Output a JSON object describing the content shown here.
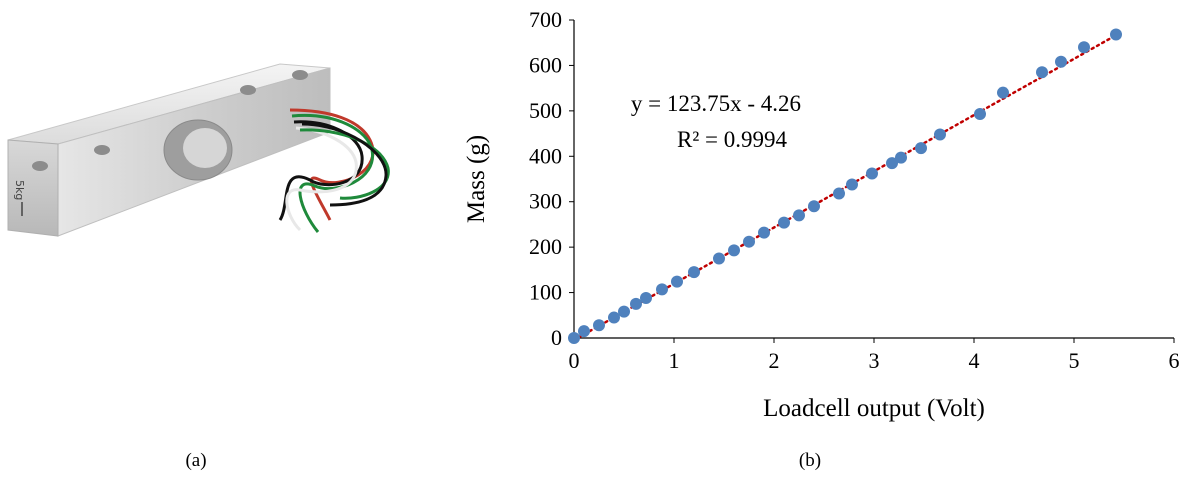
{
  "captions": {
    "a": "(a)",
    "b": "(b)"
  },
  "photo": {
    "engraving": "5kg",
    "wire_colors": [
      "#c0392b",
      "#1f8a3b",
      "#111111",
      "#e8e8e8"
    ]
  },
  "chart_data": {
    "type": "scatter",
    "xlabel": "Loadcell output (Volt)",
    "ylabel": "Mass (g)",
    "xlim": [
      0,
      6
    ],
    "ylim": [
      0,
      700
    ],
    "xticks": [
      0,
      1,
      2,
      3,
      4,
      5,
      6
    ],
    "yticks": [
      0,
      100,
      200,
      300,
      400,
      500,
      600,
      700
    ],
    "grid": false,
    "annotations": [
      "y = 123.75x - 4.26",
      "R² = 0.9994"
    ],
    "trendline": {
      "slope": 123.75,
      "intercept": -4.26,
      "style": "dotted",
      "color": "#c00000"
    },
    "marker_color": "#4f81bd",
    "series": [
      {
        "x": [
          0.0,
          0.1,
          0.25,
          0.4,
          0.5,
          0.62,
          0.72,
          0.88,
          1.03,
          1.2,
          1.45,
          1.6,
          1.75,
          1.9,
          2.1,
          2.25,
          2.4,
          2.65,
          2.78,
          2.98,
          3.18,
          3.27,
          3.47,
          3.66,
          4.06,
          4.29,
          4.68,
          4.87,
          5.1,
          5.42
        ],
        "y": [
          0,
          15,
          28,
          45,
          58,
          75,
          88,
          107,
          124,
          145,
          175,
          193,
          212,
          232,
          254,
          270,
          290,
          318,
          338,
          362,
          385,
          397,
          418,
          448,
          493,
          540,
          585,
          608,
          640,
          668
        ]
      }
    ]
  }
}
